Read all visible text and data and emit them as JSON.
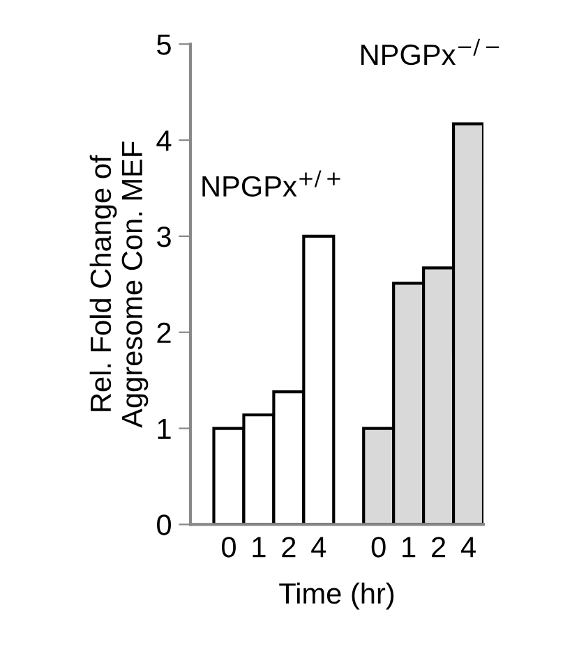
{
  "chart_data": {
    "type": "bar",
    "xlabel": "Time (hr)",
    "ylabel": "Rel. Fold Change of\nAggresome Con. MEF",
    "categories": [
      "0",
      "1",
      "2",
      "4",
      null,
      "0",
      "1",
      "2",
      "4"
    ],
    "series": [
      {
        "name": "NPGPx$^{+/+}$",
        "color": "#ffffff",
        "values": [
          1.0,
          1.14,
          1.38,
          3.0,
          null,
          null,
          null,
          null,
          null
        ]
      },
      {
        "name": "NPGPx$^{−/−}$",
        "color": "#d9d9d9",
        "values": [
          null,
          null,
          null,
          null,
          null,
          1.0,
          2.51,
          2.67,
          4.17
        ]
      }
    ],
    "ylim": [
      0,
      5
    ],
    "yticks": [
      0,
      1,
      2,
      3,
      4,
      5
    ],
    "grid": false,
    "legend": false
  }
}
